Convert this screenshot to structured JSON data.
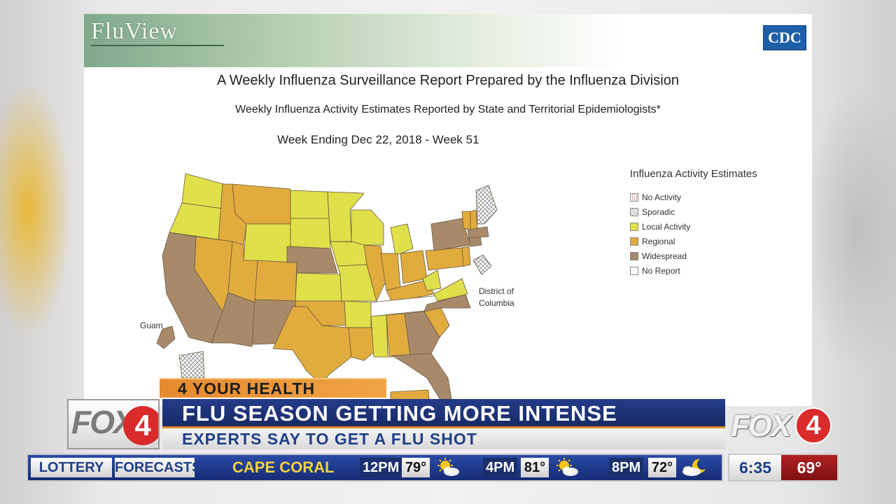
{
  "report": {
    "logo_text": "FluView",
    "cdc_logo": "CDC",
    "title": "A Weekly Influenza Surveillance Report Prepared by the Influenza Division",
    "subtitle": "Weekly Influenza Activity Estimates Reported by State and Territorial Epidemiologists*",
    "week": "Week Ending Dec 22, 2018 - Week 51",
    "dc_label_line1": "District of",
    "dc_label_line2": "Columbia",
    "guam_label": "Guam"
  },
  "legend": {
    "title": "Influenza Activity Estimates",
    "items": [
      {
        "label": "No Activity",
        "color": "#ffffff"
      },
      {
        "label": "Sporadic",
        "color": "#ffffff"
      },
      {
        "label": "Local Activity",
        "color": "#dfe04a"
      },
      {
        "label": "Regional",
        "color": "#e1ab3d"
      },
      {
        "label": "Widespread",
        "color": "#a8896a"
      },
      {
        "label": "No Report",
        "color": "#ffffff"
      }
    ]
  },
  "colors": {
    "local": "#dfe04a",
    "regional": "#e1ab3d",
    "widespread": "#a8896a",
    "brand_blue": "#1f3f88",
    "accent_orange": "#e08a2a",
    "fox_red": "#d92b2b"
  },
  "lower_third": {
    "segment_tag": "4 YOUR HEALTH",
    "headline": "FLU SEASON GETTING MORE INTENSE",
    "subheadline": "EXPERTS SAY TO GET A FLU SHOT",
    "station_logo_text": "FOX",
    "station_logo_number": "4"
  },
  "ticker": {
    "tabs": [
      "LOTTERY",
      "FORECASTS"
    ],
    "city": "CAPE CORAL",
    "forecast": [
      {
        "time": "12PM",
        "temp": "79°",
        "icon": "partly-sunny-icon"
      },
      {
        "time": "4PM",
        "temp": "81°",
        "icon": "partly-sunny-icon"
      },
      {
        "time": "8PM",
        "temp": "72°",
        "icon": "partly-cloudy-night-icon"
      }
    ],
    "clock": "6:35",
    "current_temp": "69°"
  }
}
